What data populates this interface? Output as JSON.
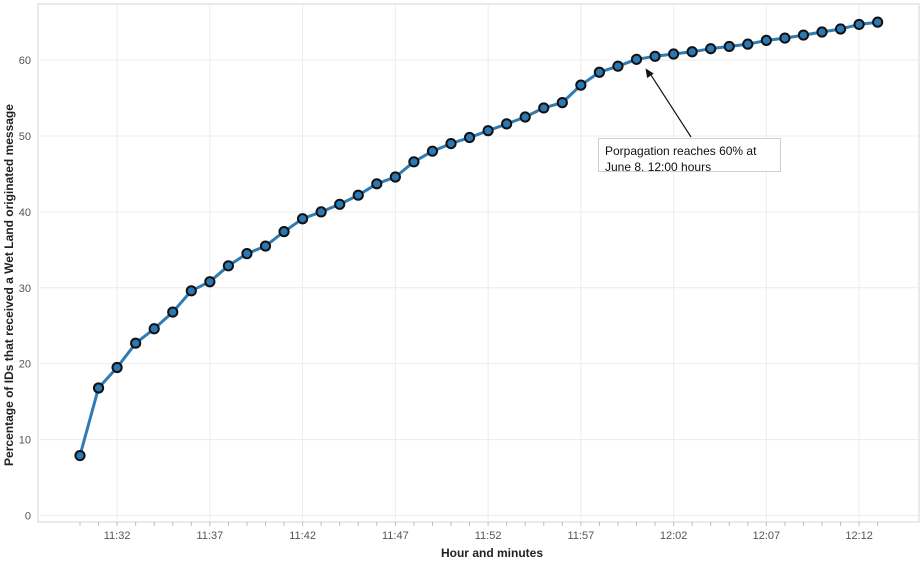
{
  "chart_data": {
    "type": "line",
    "xlabel": "Hour and minutes",
    "ylabel": "Percentage of IDs that received a Wet Land originated message",
    "ylim": [
      0,
      65
    ],
    "y_ticks": [
      0,
      10,
      20,
      30,
      40,
      50,
      60
    ],
    "x_tick_labels": [
      "11:32",
      "11:37",
      "11:42",
      "11:47",
      "11:52",
      "11:57",
      "12:02",
      "12:07",
      "12:12"
    ],
    "x": [
      "11:30",
      "11:31",
      "11:32",
      "11:33",
      "11:34",
      "11:35",
      "11:36",
      "11:37",
      "11:38",
      "11:39",
      "11:40",
      "11:41",
      "11:42",
      "11:43",
      "11:44",
      "11:45",
      "11:46",
      "11:47",
      "11:48",
      "11:49",
      "11:50",
      "11:51",
      "11:52",
      "11:53",
      "11:54",
      "11:55",
      "11:56",
      "11:57",
      "11:58",
      "11:59",
      "12:00",
      "12:01",
      "12:02",
      "12:03",
      "12:04",
      "12:05",
      "12:06",
      "12:07",
      "12:08",
      "12:09",
      "12:10",
      "12:11",
      "12:12",
      "12:13"
    ],
    "values": [
      7.9,
      16.8,
      19.5,
      22.7,
      24.6,
      26.8,
      29.6,
      30.8,
      32.9,
      34.5,
      35.5,
      37.4,
      39.1,
      40.0,
      41.0,
      42.2,
      43.7,
      44.6,
      46.6,
      48.0,
      49.0,
      49.8,
      50.7,
      51.6,
      52.5,
      53.7,
      54.4,
      56.7,
      58.4,
      59.2,
      60.1,
      60.5,
      60.8,
      61.1,
      61.5,
      61.8,
      62.1,
      62.6,
      62.9,
      63.3,
      63.7,
      64.1,
      64.7,
      65.0
    ],
    "grid": true,
    "line_color": "#2f7cb3",
    "marker_fill": "#2a79b5",
    "marker_edge": "#111111",
    "annotation": {
      "line1": "Porpagation reaches 60% at",
      "line2": "June 8. 12:00 hours",
      "points_to_x": "12:00"
    }
  }
}
